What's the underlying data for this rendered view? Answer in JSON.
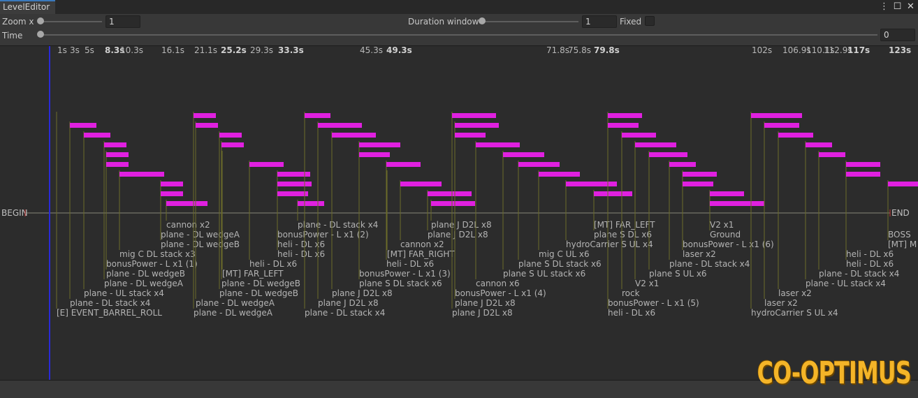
{
  "window": {
    "tab_title": "LevelEditor",
    "icons": [
      "kebab-menu-icon",
      "maximize-icon",
      "close-icon"
    ]
  },
  "controls": {
    "zoom_label": "Zoom x",
    "zoom_value": "1",
    "duration_label": "Duration window",
    "duration_value": "1",
    "fixed_label": "Fixed",
    "fixed_checked": false,
    "time_label": "Time",
    "time_value": "0"
  },
  "timeline": {
    "begin_label": "BEGIN",
    "end_label": "END",
    "colors": {
      "bar": "#e020e0",
      "tick_line": "#6b6b2a",
      "cursor": "#2a2ad8",
      "axis": "#888877"
    },
    "time_ticks": [
      "1s",
      "3s",
      "5s",
      "8.3s",
      "10.3s",
      "16.1s",
      "21.1s",
      "25.2s",
      "29.3s",
      "33.3s",
      "45.3s",
      "49.3s",
      "71.8s",
      "75.8s",
      "79.8s",
      "102s",
      "106.9s",
      "110.1s",
      "112.9s",
      "117s",
      "123s"
    ],
    "events": [
      {
        "label": "[E] EVENT_BARREL_ROLL"
      },
      {
        "label": "plane - DL stack x4"
      },
      {
        "label": "plane - UL stack x4"
      },
      {
        "label": "plane - DL wedgeA"
      },
      {
        "label": "plane - DL wedgeB"
      },
      {
        "label": "bonusPower - L x1 (1)"
      },
      {
        "label": "mig C DL stack x3"
      },
      {
        "label": "plane - DL wedgeA"
      },
      {
        "label": "plane - DL wedgeB"
      },
      {
        "label": "cannon x2"
      },
      {
        "label": "plane - DL wedgeA"
      },
      {
        "label": "plane - DL wedgeB"
      },
      {
        "label": "plane - DL wedgeA"
      },
      {
        "label": "plane - DL wedgeB"
      },
      {
        "label": "[MT] FAR_LEFT"
      },
      {
        "label": "heli - DL x6"
      },
      {
        "label": "heli - DL x6"
      },
      {
        "label": "heli - DL x6"
      },
      {
        "label": "bonusPower - L x1 (2)"
      },
      {
        "label": "plane - DL stack x4"
      },
      {
        "label": "plane - DL stack x4"
      },
      {
        "label": "plane J D2L x8"
      },
      {
        "label": "plane J D2L x8"
      },
      {
        "label": "plane S DL stack x6"
      },
      {
        "label": "bonusPower - L x1 (3)"
      },
      {
        "label": "heli - DL x6"
      },
      {
        "label": "[MT] FAR_RIGHT"
      },
      {
        "label": "cannon x2"
      },
      {
        "label": "plane J D2L x8"
      },
      {
        "label": "plane J D2L x8"
      },
      {
        "label": "plane J D2L x8"
      },
      {
        "label": "plane J D2L x8"
      },
      {
        "label": "bonusPower - L x1 (4)"
      },
      {
        "label": "cannon x6"
      },
      {
        "label": "plane S UL stack x6"
      },
      {
        "label": "plane S DL stack x6"
      },
      {
        "label": "mig C UL x6"
      },
      {
        "label": "hydroCarrier S UL x4"
      },
      {
        "label": "plane S DL x6"
      },
      {
        "label": "[MT] FAR_LEFT"
      },
      {
        "label": "heli - DL x6"
      },
      {
        "label": "bonusPower - L x1 (5)"
      },
      {
        "label": "rock"
      },
      {
        "label": "V2 x1"
      },
      {
        "label": "plane S UL x6"
      },
      {
        "label": "plane - DL stack x4"
      },
      {
        "label": "laser x2"
      },
      {
        "label": "bonusPower - L x1 (6)"
      },
      {
        "label": "Ground"
      },
      {
        "label": "V2 x1"
      },
      {
        "label": "hydroCarrier S UL x4"
      },
      {
        "label": "laser x2"
      },
      {
        "label": "laser x2"
      },
      {
        "label": "plane - UL stack x4"
      },
      {
        "label": "plane - DL stack x4"
      },
      {
        "label": "heli - DL x6"
      },
      {
        "label": "heli - DL x6"
      },
      {
        "label": "[MT] M"
      },
      {
        "label": "BOSS"
      }
    ]
  },
  "watermark": "CO-OPTIMUS"
}
